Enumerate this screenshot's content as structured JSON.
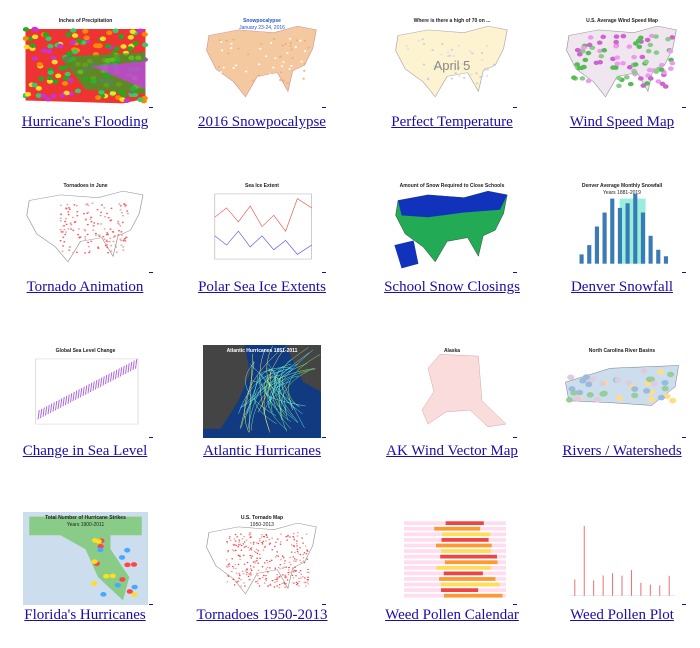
{
  "gallery": {
    "items": [
      {
        "caption": "Hurricane's Flooding",
        "thumb_text": [
          "Inches of Precipitation"
        ]
      },
      {
        "caption": "2016 Snowpocalypse",
        "thumb_text": [
          "Snowpocalypse",
          "January 23-24, 2016"
        ]
      },
      {
        "caption": "Perfect Temperature",
        "thumb_text": [
          "Where is there a high of 70 on ...",
          "April 5"
        ]
      },
      {
        "caption": "Wind Speed Map",
        "thumb_text": [
          "U.S. Average Wind Speed Map"
        ]
      },
      {
        "caption": "Tornado Animation",
        "thumb_text": [
          "Tornadoes in June"
        ]
      },
      {
        "caption": "Polar Sea Ice Extents",
        "thumb_text": [
          "Sea Ice Extent"
        ]
      },
      {
        "caption": "School Snow Closings",
        "thumb_text": [
          "Amount of Snow Required to Close Schools"
        ]
      },
      {
        "caption": "Denver Snowfall",
        "thumb_text": [
          "Denver Average Monthly Snowfall",
          "Years 1881-2019"
        ]
      },
      {
        "caption": "Change in Sea Level",
        "thumb_text": [
          "Global Sea Level Change"
        ]
      },
      {
        "caption": "Atlantic Hurricanes",
        "thumb_text": [
          "Atlantic Hurricanes 1851-2011"
        ]
      },
      {
        "caption": "AK Wind Vector Map",
        "thumb_text": [
          "Alaska"
        ]
      },
      {
        "caption": "Rivers / Watersheds",
        "thumb_text": [
          "North Carolina River Basins"
        ]
      },
      {
        "caption": "Florida's Hurricanes",
        "thumb_text": [
          "Total Number of Hurricane Strikes",
          "Years 1900-2011"
        ]
      },
      {
        "caption": "Tornadoes 1950-2013",
        "thumb_text": [
          "U.S. Tornado Map",
          "1950-2013"
        ]
      },
      {
        "caption": "Weed Pollen Calendar"
      },
      {
        "caption": "Weed Pollen Plot"
      }
    ]
  }
}
